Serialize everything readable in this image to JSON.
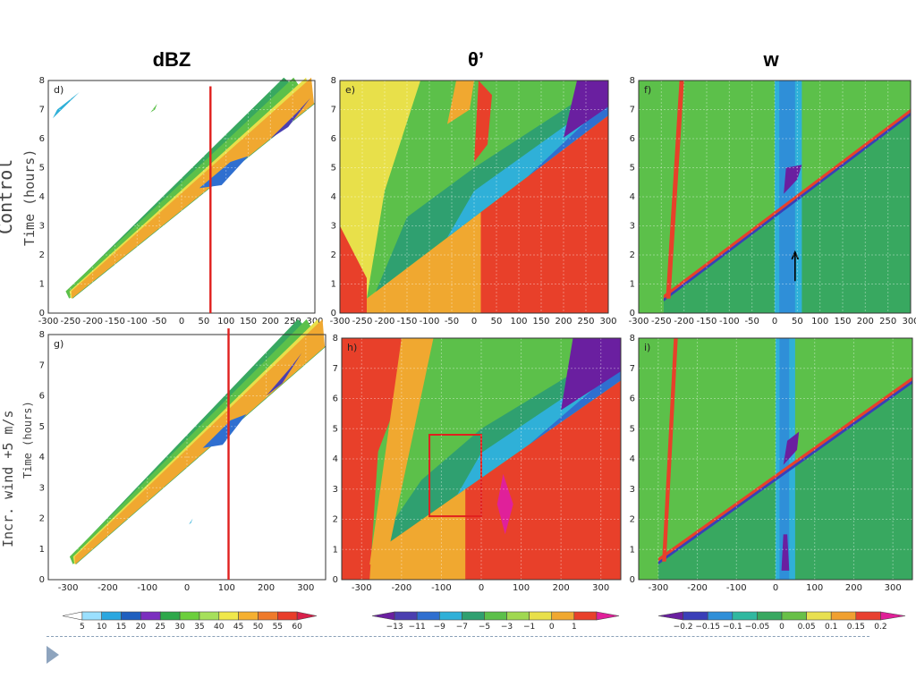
{
  "column_titles": [
    "dBZ",
    "θ’",
    "w"
  ],
  "row_labels": {
    "control": "Control",
    "incr": "Incr. wind +5 m/s",
    "time_hours_1": "Time (hours)",
    "time_hours_2": "Time (hours)"
  },
  "colorbars": {
    "dbz": [
      "5",
      "10",
      "15",
      "20",
      "25",
      "30",
      "35",
      "40",
      "45",
      "50",
      "55",
      "60"
    ],
    "theta": [
      "−13",
      "−11",
      "−9",
      "−7",
      "−5",
      "−3",
      "−1",
      "0",
      "1"
    ],
    "w": [
      "−0.2",
      "−0.15",
      "−0.1",
      "−0.05",
      "0",
      "0.05",
      "0.1",
      "0.15",
      "0.2"
    ]
  },
  "colorbar_colors": {
    "dbz": [
      "#ffffff",
      "#9be0ff",
      "#2aa7e0",
      "#1f5fbf",
      "#7b2fbf",
      "#2ea84a",
      "#6ccf3c",
      "#a6e05a",
      "#f0e84a",
      "#f5b030",
      "#ef7a2a",
      "#e83d2a",
      "#d8204a"
    ],
    "theta": [
      "#6a1fa0",
      "#4a3fb0",
      "#2f6fd0",
      "#2fb0d8",
      "#2fa070",
      "#5cc04a",
      "#a0d850",
      "#e8e04a",
      "#f0a830",
      "#e8402a",
      "#e0209a"
    ],
    "w": [
      "#6a1fa0",
      "#3a3fb8",
      "#2f8fd8",
      "#30b8a0",
      "#38a860",
      "#68c048",
      "#e8e050",
      "#f0a030",
      "#e84030",
      "#e02098"
    ]
  },
  "chart_data": [
    {
      "type": "heatmap",
      "label": "d)",
      "title": "",
      "xlabel": "",
      "ylabel": "Time (hours)",
      "xlim": [
        -300,
        300
      ],
      "ylim": [
        0,
        8
      ],
      "x_ticks": [
        "-300",
        "-250",
        "-200",
        "-150",
        "-100",
        "-50",
        "0",
        "50",
        "100",
        "150",
        "200",
        "250",
        "300"
      ],
      "y_ticks": [
        "0",
        "1",
        "2",
        "3",
        "4",
        "5",
        "6",
        "7",
        "8"
      ],
      "grid": true,
      "annotations": [
        "vertical red line at x≈65"
      ]
    },
    {
      "type": "heatmap",
      "label": "e)",
      "title": "",
      "xlabel": "",
      "ylabel": "",
      "xlim": [
        -300,
        300
      ],
      "ylim": [
        0,
        8
      ],
      "x_ticks": [
        "-300",
        "-250",
        "-200",
        "-150",
        "-100",
        "-50",
        "0",
        "50",
        "100",
        "150",
        "200",
        "250",
        "300"
      ],
      "y_ticks": [
        "0",
        "1",
        "2",
        "3",
        "4",
        "5",
        "6",
        "7",
        "8"
      ],
      "grid": true
    },
    {
      "type": "heatmap",
      "label": "f)",
      "title": "",
      "xlabel": "",
      "ylabel": "",
      "xlim": [
        -300,
        300
      ],
      "ylim": [
        0,
        8
      ],
      "x_ticks": [
        "-300",
        "-250",
        "-200",
        "-150",
        "-100",
        "-50",
        "0",
        "50",
        "100",
        "150",
        "200",
        "250",
        "300"
      ],
      "y_ticks": [
        "0",
        "1",
        "2",
        "3",
        "4",
        "5",
        "6",
        "7",
        "8"
      ],
      "grid": true,
      "annotations": [
        "black arrow at x≈45, t≈1.5–2.2"
      ]
    },
    {
      "type": "heatmap",
      "label": "g)",
      "title": "",
      "xlabel": "",
      "ylabel": "Time (hours)",
      "xlim": [
        -350,
        350
      ],
      "ylim": [
        0,
        8
      ],
      "x_ticks": [
        "-300",
        "-200",
        "-100",
        "0",
        "100",
        "200",
        "300"
      ],
      "y_ticks": [
        "0",
        "1",
        "2",
        "3",
        "4",
        "5",
        "6",
        "7",
        "8"
      ],
      "grid": true,
      "annotations": [
        "vertical red line at x≈105"
      ]
    },
    {
      "type": "heatmap",
      "label": "h)",
      "title": "",
      "xlabel": "",
      "ylabel": "",
      "xlim": [
        -350,
        350
      ],
      "ylim": [
        0,
        8
      ],
      "x_ticks": [
        "-300",
        "-200",
        "-100",
        "0",
        "100",
        "200",
        "300"
      ],
      "y_ticks": [
        "0",
        "1",
        "2",
        "3",
        "4",
        "5",
        "6",
        "7",
        "8"
      ],
      "grid": true,
      "annotations": [
        "red box x∈[-130,0], t∈[2.1,4.8]"
      ]
    },
    {
      "type": "heatmap",
      "label": "i)",
      "title": "",
      "xlabel": "",
      "ylabel": "",
      "xlim": [
        -350,
        350
      ],
      "ylim": [
        0,
        8
      ],
      "x_ticks": [
        "-300",
        "-200",
        "-100",
        "0",
        "100",
        "200",
        "300"
      ],
      "y_ticks": [
        "0",
        "1",
        "2",
        "3",
        "4",
        "5",
        "6",
        "7",
        "8"
      ],
      "grid": true
    }
  ]
}
